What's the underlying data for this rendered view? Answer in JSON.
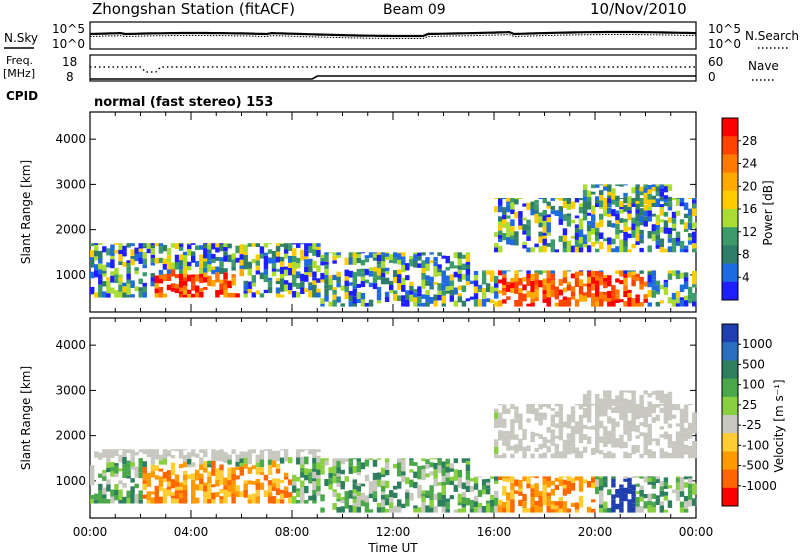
{
  "header": {
    "title": "Zhongshan Station (fitACF)",
    "beam": "Beam 09",
    "date": "10/Nov/2010"
  },
  "top_strip": {
    "left_label": "N.Sky",
    "right_label": "N.Search",
    "right_style": "dotted",
    "axis_high": "10^5",
    "axis_low": "10^0"
  },
  "freq_strip": {
    "left_label_1": "Freq.",
    "left_label_2": "[MHz]",
    "axis_left_high": "18",
    "axis_left_low": "8",
    "right_label": "Nave",
    "right_style": "dotted",
    "axis_right_high": "60",
    "axis_right_low": "0"
  },
  "cpid": {
    "label": "CPID",
    "value": "normal (fast stereo) 153"
  },
  "chart_data": [
    {
      "type": "heatmap",
      "name": "power-panel",
      "ylabel": "Slant Range [km]",
      "ylim": [
        180,
        4600
      ],
      "y_ticks": [
        1000,
        2000,
        3000,
        4000
      ],
      "xlim": [
        0,
        24
      ],
      "x_ticks": [
        "00:00",
        "04:00",
        "08:00",
        "12:00",
        "16:00",
        "20:00",
        "00:00"
      ],
      "colorbar": {
        "label": "Power [dB]",
        "ticks": [
          "4",
          "8",
          "12",
          "16",
          "20",
          "24",
          "28"
        ],
        "colors": [
          "#1e1eff",
          "#1e6adf",
          "#2f7c68",
          "#3d9b6b",
          "#aadd33",
          "#ffcc00",
          "#ffaa00",
          "#ff7a00",
          "#ff4400",
          "#ff0000"
        ]
      }
    },
    {
      "type": "heatmap",
      "name": "velocity-panel",
      "ylabel": "Slant Range [km]",
      "ylim": [
        180,
        4600
      ],
      "y_ticks": [
        1000,
        2000,
        3000,
        4000
      ],
      "xlim": [
        0,
        24
      ],
      "x_ticks": [
        "00:00",
        "04:00",
        "08:00",
        "12:00",
        "16:00",
        "20:00",
        "00:00"
      ],
      "xlabel": "Time UT",
      "colorbar": {
        "label": "Velocity [m s⁻¹]",
        "ticks": [
          "1000",
          "500",
          "100",
          "25",
          "-25",
          "-100",
          "-500",
          "-1000"
        ],
        "colors": [
          "#1f3fb0",
          "#2a6fbf",
          "#2e7f5e",
          "#4aa84a",
          "#88d040",
          "#c8c8c0",
          "#ffcc33",
          "#ff9900",
          "#ff6600",
          "#ff0000"
        ]
      }
    }
  ]
}
